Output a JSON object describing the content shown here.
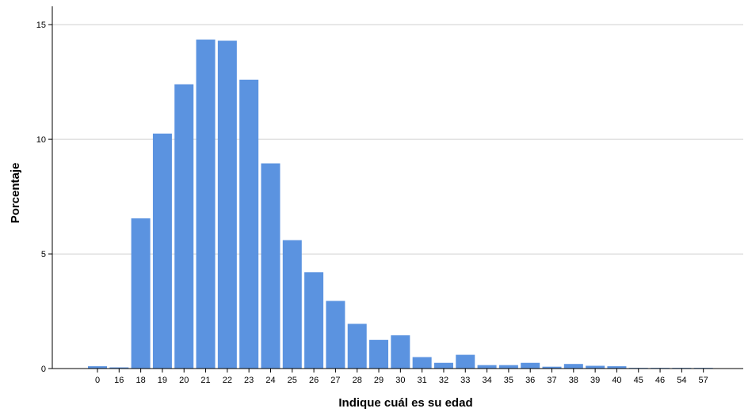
{
  "chart_data": {
    "type": "bar",
    "xlabel": "Indique cuál es su edad",
    "ylabel": "Porcentaje",
    "categories": [
      "0",
      "16",
      "18",
      "19",
      "20",
      "21",
      "22",
      "23",
      "24",
      "25",
      "26",
      "27",
      "28",
      "29",
      "30",
      "31",
      "32",
      "33",
      "34",
      "35",
      "36",
      "37",
      "38",
      "39",
      "40",
      "45",
      "46",
      "54",
      "57"
    ],
    "values": [
      0.1,
      0.05,
      6.55,
      10.25,
      12.4,
      14.35,
      14.3,
      12.6,
      8.95,
      5.6,
      4.2,
      2.95,
      1.95,
      1.25,
      1.45,
      0.5,
      0.25,
      0.6,
      0.15,
      0.15,
      0.25,
      0.08,
      0.2,
      0.12,
      0.1,
      0.03,
      0.03,
      0.03,
      0.03
    ],
    "yticks": [
      0,
      5,
      10,
      15
    ],
    "ylim": [
      0,
      15.8
    ],
    "grid": true,
    "colors": {
      "bar": "#5b93e0",
      "grid": "#d0d0d0",
      "axis": "#000000"
    }
  }
}
